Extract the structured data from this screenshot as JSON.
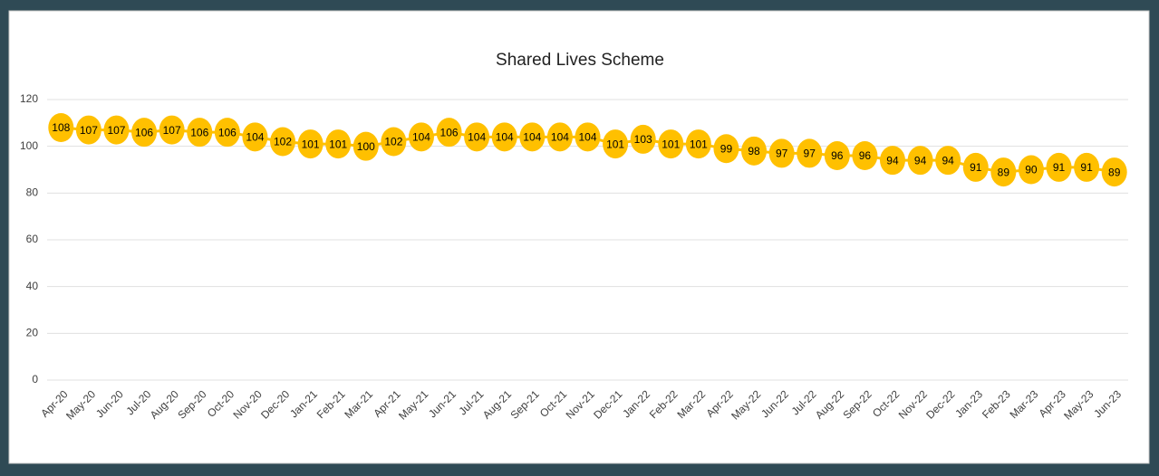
{
  "chart_data": {
    "type": "line",
    "title": "Shared Lives Scheme",
    "categories": [
      "Apr-20",
      "May-20",
      "Jun-20",
      "Jul-20",
      "Aug-20",
      "Sep-20",
      "Oct-20",
      "Nov-20",
      "Dec-20",
      "Jan-21",
      "Feb-21",
      "Mar-21",
      "Apr-21",
      "May-21",
      "Jun-21",
      "Jul-21",
      "Aug-21",
      "Sep-21",
      "Oct-21",
      "Nov-21",
      "Dec-21",
      "Jan-22",
      "Feb-22",
      "Mar-22",
      "Apr-22",
      "May-22",
      "Jun-22",
      "Jul-22",
      "Aug-22",
      "Sep-22",
      "Oct-22",
      "Nov-22",
      "Dec-22",
      "Jan-23",
      "Feb-23",
      "Mar-23",
      "Apr-23",
      "May-23",
      "Jun-23"
    ],
    "values": [
      108,
      107,
      107,
      106,
      107,
      106,
      106,
      104,
      102,
      101,
      101,
      100,
      102,
      104,
      106,
      104,
      104,
      104,
      104,
      104,
      101,
      103,
      101,
      101,
      99,
      98,
      97,
      97,
      96,
      96,
      94,
      94,
      94,
      91,
      89,
      90,
      91,
      91,
      89
    ],
    "color": "#ffc000",
    "ylim": [
      0,
      120
    ],
    "yticks": [
      0,
      20,
      40,
      60,
      80,
      100,
      120
    ],
    "grid": true
  }
}
